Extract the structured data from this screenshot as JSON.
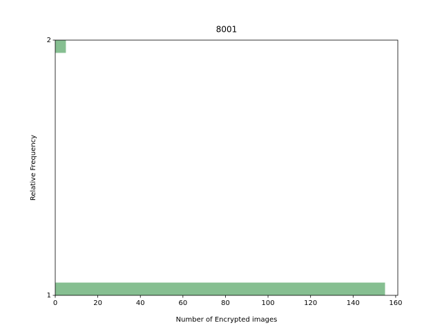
{
  "chart_data": {
    "type": "histogram",
    "orientation": "horizontal",
    "title": "8001",
    "xlabel": "Number of Encrypted images",
    "ylabel": "Relative Frequency",
    "bins": [
      1,
      1.05,
      1.1,
      1.15,
      1.2,
      1.25,
      1.3,
      1.35,
      1.4,
      1.45,
      1.5,
      1.55,
      1.6,
      1.65,
      1.7,
      1.75,
      1.8,
      1.85,
      1.9,
      1.95,
      2
    ],
    "counts": [
      155,
      0,
      0,
      0,
      0,
      0,
      0,
      0,
      0,
      0,
      0,
      0,
      0,
      0,
      0,
      0,
      0,
      0,
      0,
      5
    ],
    "color": "#86bf91",
    "xlim": [
      0,
      161
    ],
    "xticks": [
      0,
      20,
      40,
      60,
      80,
      100,
      120,
      140,
      160
    ],
    "ylim": [
      1,
      2
    ],
    "yticks": [
      1,
      2
    ],
    "grid": false
  }
}
